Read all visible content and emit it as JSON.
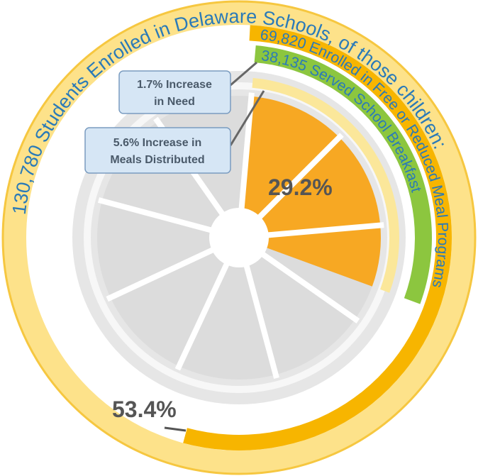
{
  "rings": [
    {
      "text": "130,780 Students Enrolled in Delaware Schools, of those children:"
    },
    {
      "text": "69,820 Enrolled in Free or Reduced Meal Programs",
      "percent": 53.4,
      "percent_label": "53.4%"
    },
    {
      "text": "38,135 Served School Breakfast",
      "percent": 29.2,
      "percent_label": "29.2%"
    }
  ],
  "callouts": [
    {
      "lines": [
        "1.7% Increase",
        "in Need"
      ]
    },
    {
      "lines": [
        "5.6% Increase in",
        "Meals Distributed"
      ]
    }
  ]
}
